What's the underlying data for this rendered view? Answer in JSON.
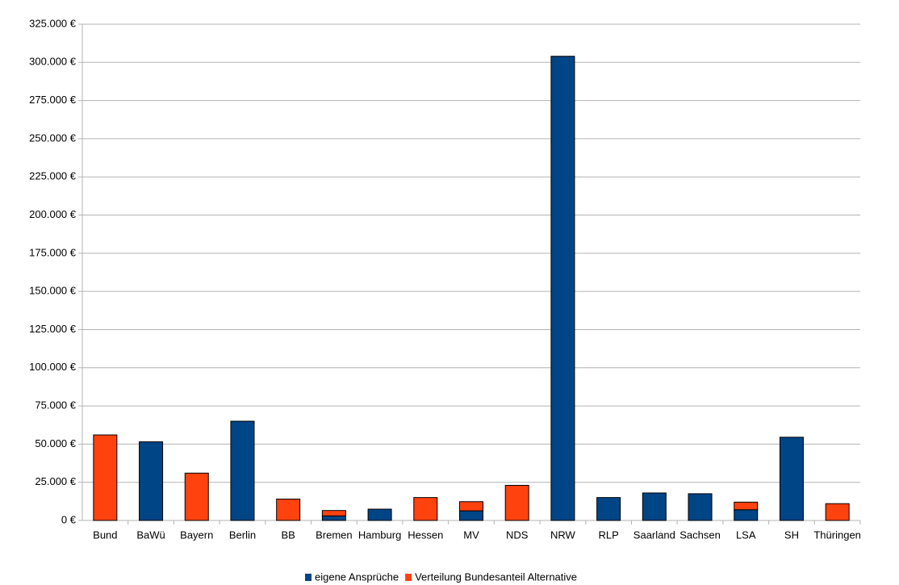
{
  "chart_data": {
    "type": "stacked_bar",
    "categories": [
      "Bund",
      "BaWü",
      "Bayern",
      "Berlin",
      "BB",
      "Bremen",
      "Hamburg",
      "Hessen",
      "MV",
      "NDS",
      "NRW",
      "RLP",
      "Saarland",
      "Sachsen",
      "LSA",
      "SH",
      "Thüringen"
    ],
    "series": [
      {
        "name": "eigene Ansprüche",
        "color": "#004586",
        "values": [
          0,
          51500,
          0,
          65000,
          0,
          3000,
          7400,
          0,
          6300,
          0,
          304000,
          15000,
          18000,
          17500,
          7000,
          54500,
          0
        ]
      },
      {
        "name": "Verteilung Bundesanteil Alternative",
        "color": "#ff420e",
        "values": [
          56000,
          0,
          31000,
          0,
          14000,
          3500,
          0,
          15000,
          6000,
          23000,
          0,
          0,
          0,
          0,
          5000,
          0,
          11000
        ]
      }
    ],
    "ylim": [
      0,
      325000
    ],
    "yticks": [
      {
        "value": 0,
        "label": "0 €"
      },
      {
        "value": 25000,
        "label": "25.000 €"
      },
      {
        "value": 50000,
        "label": "50.000 €"
      },
      {
        "value": 75000,
        "label": "75.000 €"
      },
      {
        "value": 100000,
        "label": "100.000 €"
      },
      {
        "value": 125000,
        "label": "125.000 €"
      },
      {
        "value": 150000,
        "label": "150.000 €"
      },
      {
        "value": 175000,
        "label": "175.000 €"
      },
      {
        "value": 200000,
        "label": "200.000 €"
      },
      {
        "value": 225000,
        "label": "225.000 €"
      },
      {
        "value": 250000,
        "label": "250.000 €"
      },
      {
        "value": 275000,
        "label": "275.000 €"
      },
      {
        "value": 300000,
        "label": "300.000 €"
      },
      {
        "value": 325000,
        "label": "325.000 €"
      }
    ],
    "grid": true,
    "legend": "bottom"
  }
}
